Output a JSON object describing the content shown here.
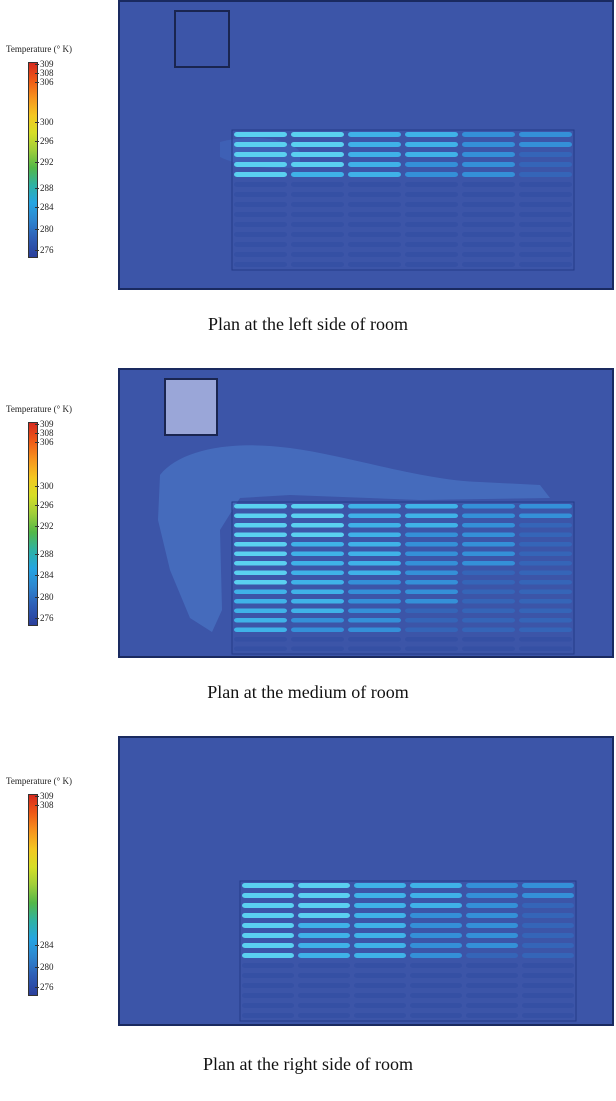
{
  "legend_title": "Temperature (° K)",
  "legend_ticks": [
    "309",
    "308",
    "306",
    "300",
    "296",
    "292",
    "288",
    "284",
    "280",
    "276"
  ],
  "legend_unit": "K",
  "colorbar_range": [
    276,
    309
  ],
  "panels": [
    {
      "id": "left",
      "caption": "Plan at the left side of room",
      "vent_fill": "#3a50a0",
      "vent_fill_opacity": 0.0
    },
    {
      "id": "medium",
      "caption": "Plan at the medium of room",
      "vent_fill": "#9aa6d8",
      "vent_fill_opacity": 1.0
    },
    {
      "id": "right",
      "caption": "Plan at the right side of room",
      "vent_fill": "#3a50a0",
      "vent_fill_opacity": 0.0
    }
  ],
  "colors": {
    "background_field": "#3c55a8",
    "cool_field": "#2b3f9b",
    "warm_stripe": "#25a5e2",
    "hot_stripe": "#5ad0f0",
    "frame": "#1a2a60"
  }
}
